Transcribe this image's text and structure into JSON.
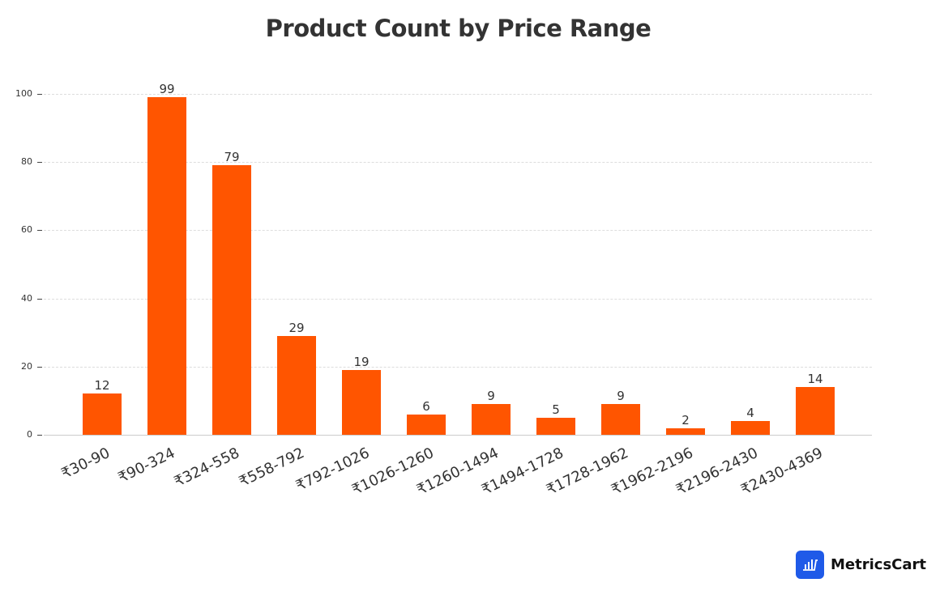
{
  "title": "Product Count by Price Range",
  "brand": {
    "name": "MetricsCart",
    "icon": "bar-chart-cart-icon",
    "color": "#1f5ae8"
  },
  "colors": {
    "bar": "#ff5500",
    "text": "#333333",
    "grid": "#dddddd"
  },
  "y_ticks": [
    "0",
    "20",
    "40",
    "60",
    "80",
    "100"
  ],
  "chart_data": {
    "type": "bar",
    "title": "Product Count by Price Range",
    "xlabel": "",
    "ylabel": "",
    "categories": [
      "₹30-90",
      "₹90-324",
      "₹324-558",
      "₹558-792",
      "₹792-1026",
      "₹1026-1260",
      "₹1260-1494",
      "₹1494-1728",
      "₹1728-1962",
      "₹1962-2196",
      "₹2196-2430",
      "₹2430-4369"
    ],
    "values": [
      12,
      99,
      79,
      29,
      19,
      6,
      9,
      5,
      9,
      2,
      4,
      14
    ],
    "ylim": [
      0,
      100
    ],
    "yticks": [
      0,
      20,
      40,
      60,
      80,
      100
    ],
    "grid": true,
    "grid_style": "dashed horizontal",
    "data_labels": true,
    "legend": null,
    "bar_color": "#ff5500"
  }
}
